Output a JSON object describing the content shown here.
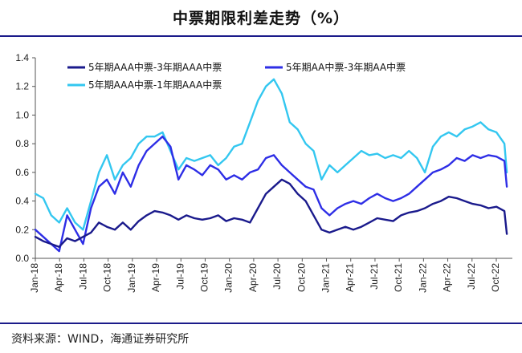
{
  "header": {
    "title": "中票期限利差走势（%）"
  },
  "footer": {
    "source": "资料来源：WIND，海通证券研究所"
  },
  "chart_data": {
    "type": "line",
    "title": "中票期限利差走势（%）",
    "xlabel": "",
    "ylabel": "",
    "ylim": [
      0,
      1.4
    ],
    "yticks": [
      "0.0",
      "0.2",
      "0.4",
      "0.6",
      "0.8",
      "1.0",
      "1.2",
      "1.4"
    ],
    "x_ticks": [
      "Jan-18",
      "Apr-18",
      "Jul-18",
      "Oct-18",
      "Jan-19",
      "Apr-19",
      "Jul-19",
      "Oct-19",
      "Jan-20",
      "Apr-20",
      "Jul-20",
      "Oct-20",
      "Jan-21",
      "Apr-21",
      "Jul-21",
      "Oct-21",
      "Jan-22",
      "Apr-22",
      "Jul-22",
      "Oct-22"
    ],
    "x_range": [
      0,
      60
    ],
    "legend_position": "top-left",
    "series": [
      {
        "name": "5年期AAA中票-3年期AAA中票",
        "color": "#1a1a8c",
        "x": [
          0,
          1,
          2,
          3,
          4,
          5,
          6,
          7,
          8,
          9,
          10,
          11,
          12,
          13,
          14,
          15,
          16,
          17,
          18,
          19,
          20,
          21,
          22,
          23,
          24,
          25,
          26,
          27,
          28,
          29,
          30,
          31,
          32,
          33,
          34,
          35,
          36,
          37,
          38,
          39,
          40,
          41,
          42,
          43,
          44,
          45,
          46,
          47,
          48,
          49,
          50,
          51,
          52,
          53,
          54,
          55,
          56,
          57,
          58,
          59,
          59.3
        ],
        "values": [
          0.15,
          0.12,
          0.1,
          0.08,
          0.14,
          0.12,
          0.15,
          0.18,
          0.25,
          0.22,
          0.2,
          0.25,
          0.2,
          0.26,
          0.3,
          0.33,
          0.32,
          0.3,
          0.27,
          0.3,
          0.28,
          0.27,
          0.28,
          0.3,
          0.26,
          0.28,
          0.27,
          0.25,
          0.35,
          0.45,
          0.5,
          0.55,
          0.52,
          0.45,
          0.4,
          0.3,
          0.2,
          0.18,
          0.2,
          0.22,
          0.2,
          0.22,
          0.25,
          0.28,
          0.27,
          0.26,
          0.3,
          0.32,
          0.33,
          0.35,
          0.38,
          0.4,
          0.43,
          0.42,
          0.4,
          0.38,
          0.37,
          0.35,
          0.36,
          0.33,
          0.17
        ]
      },
      {
        "name": "5年期AA中票-3年期AA中票",
        "color": "#2e2ee6",
        "x": [
          0,
          1,
          2,
          3,
          4,
          5,
          6,
          7,
          8,
          9,
          10,
          11,
          12,
          13,
          14,
          15,
          16,
          17,
          18,
          19,
          20,
          21,
          22,
          23,
          24,
          25,
          26,
          27,
          28,
          29,
          30,
          31,
          32,
          33,
          34,
          35,
          36,
          37,
          38,
          39,
          40,
          41,
          42,
          43,
          44,
          45,
          46,
          47,
          48,
          49,
          50,
          51,
          52,
          53,
          54,
          55,
          56,
          57,
          58,
          59,
          59.3
        ],
        "values": [
          0.2,
          0.15,
          0.1,
          0.05,
          0.3,
          0.2,
          0.1,
          0.35,
          0.5,
          0.55,
          0.45,
          0.6,
          0.5,
          0.65,
          0.75,
          0.8,
          0.85,
          0.78,
          0.55,
          0.65,
          0.62,
          0.58,
          0.65,
          0.62,
          0.55,
          0.58,
          0.55,
          0.6,
          0.62,
          0.7,
          0.72,
          0.65,
          0.6,
          0.55,
          0.5,
          0.48,
          0.35,
          0.3,
          0.35,
          0.38,
          0.4,
          0.38,
          0.42,
          0.45,
          0.42,
          0.4,
          0.42,
          0.45,
          0.5,
          0.55,
          0.6,
          0.62,
          0.65,
          0.7,
          0.68,
          0.72,
          0.7,
          0.72,
          0.71,
          0.68,
          0.5
        ]
      },
      {
        "name": "5年期AAA中票-1年期AAA中票",
        "color": "#33c7f0",
        "x": [
          0,
          1,
          2,
          3,
          4,
          5,
          6,
          7,
          8,
          9,
          10,
          11,
          12,
          13,
          14,
          15,
          16,
          17,
          18,
          19,
          20,
          21,
          22,
          23,
          24,
          25,
          26,
          27,
          28,
          29,
          30,
          31,
          32,
          33,
          34,
          35,
          36,
          37,
          38,
          39,
          40,
          41,
          42,
          43,
          44,
          45,
          46,
          47,
          48,
          49,
          50,
          51,
          52,
          53,
          54,
          55,
          56,
          57,
          58,
          59,
          59.3
        ],
        "values": [
          0.45,
          0.42,
          0.3,
          0.25,
          0.35,
          0.25,
          0.2,
          0.4,
          0.6,
          0.72,
          0.55,
          0.65,
          0.7,
          0.8,
          0.85,
          0.85,
          0.88,
          0.75,
          0.62,
          0.7,
          0.68,
          0.7,
          0.72,
          0.65,
          0.7,
          0.78,
          0.8,
          0.95,
          1.1,
          1.2,
          1.25,
          1.15,
          0.95,
          0.9,
          0.8,
          0.75,
          0.55,
          0.65,
          0.6,
          0.65,
          0.7,
          0.75,
          0.72,
          0.73,
          0.7,
          0.72,
          0.7,
          0.75,
          0.7,
          0.6,
          0.78,
          0.85,
          0.88,
          0.85,
          0.9,
          0.92,
          0.95,
          0.9,
          0.88,
          0.8,
          0.6
        ]
      }
    ]
  }
}
